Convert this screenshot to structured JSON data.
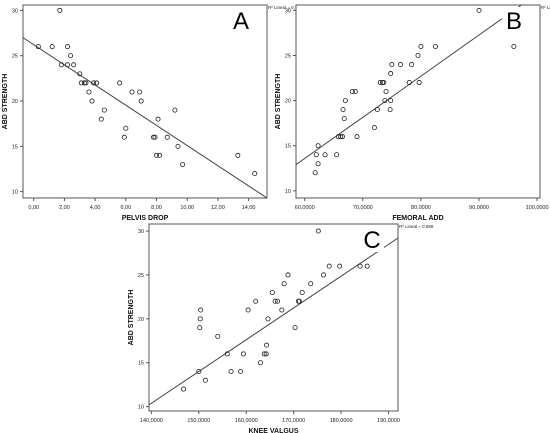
{
  "chart_data": [
    {
      "panel_label": "A",
      "type": "scatter",
      "title": "",
      "xlabel": "PELVIS DROP",
      "ylabel": "ABD STRENGTH",
      "legend_text": "R² Lineal = 0,762",
      "x_ticks": [
        "0,00",
        "2,00",
        "4,00",
        "6,00",
        "8,00",
        "10,00",
        "12,00",
        "14,00"
      ],
      "x_tick_values": [
        0,
        2,
        4,
        6,
        8,
        10,
        12,
        14
      ],
      "y_ticks": [
        "10",
        "15",
        "20",
        "25",
        "30"
      ],
      "y_tick_values": [
        10,
        15,
        20,
        25,
        30
      ],
      "xlim": [
        -0.7,
        15.2
      ],
      "ylim": [
        9.3,
        30.6
      ],
      "fit_line": {
        "x": [
          -0.7,
          15.2
        ],
        "y": [
          27.0,
          9.3
        ]
      },
      "points": [
        [
          0.3,
          26
        ],
        [
          1.2,
          26
        ],
        [
          1.7,
          30
        ],
        [
          1.8,
          24
        ],
        [
          2.2,
          26
        ],
        [
          2.4,
          25
        ],
        [
          2.2,
          24
        ],
        [
          2.6,
          24
        ],
        [
          3.0,
          23
        ],
        [
          3.1,
          22
        ],
        [
          3.3,
          22
        ],
        [
          3.6,
          21
        ],
        [
          3.4,
          22
        ],
        [
          3.9,
          22
        ],
        [
          3.8,
          20
        ],
        [
          4.1,
          22
        ],
        [
          4.4,
          18
        ],
        [
          4.6,
          19
        ],
        [
          5.6,
          22
        ],
        [
          5.9,
          16
        ],
        [
          6.0,
          17
        ],
        [
          6.4,
          21
        ],
        [
          6.9,
          21
        ],
        [
          7.0,
          20
        ],
        [
          7.8,
          16
        ],
        [
          7.9,
          16
        ],
        [
          8.1,
          18
        ],
        [
          8.0,
          14
        ],
        [
          8.2,
          14
        ],
        [
          8.7,
          16
        ],
        [
          9.2,
          19
        ],
        [
          9.4,
          15
        ],
        [
          9.7,
          13
        ],
        [
          13.3,
          14
        ],
        [
          14.4,
          12
        ]
      ]
    },
    {
      "panel_label": "B",
      "type": "scatter",
      "title": "",
      "xlabel": "FEMORAL ADD",
      "ylabel": "ABD STRENGTH",
      "legend_text": "R² Lineal = 0,792",
      "x_ticks": [
        "60,0000",
        "70,0000",
        "80,0000",
        "90,0000",
        "100,0000"
      ],
      "x_tick_values": [
        60,
        70,
        80,
        90,
        100
      ],
      "y_ticks": [
        "10",
        "15",
        "20",
        "25",
        "30"
      ],
      "y_tick_values": [
        10,
        15,
        20,
        25,
        30
      ],
      "xlim": [
        58.5,
        100.5
      ],
      "ylim": [
        9.2,
        30.6
      ],
      "fit_line": {
        "x": [
          58.5,
          97.3
        ],
        "y": [
          12.9,
          30.6
        ]
      },
      "points": [
        [
          61.8,
          12
        ],
        [
          62.0,
          14
        ],
        [
          62.3,
          13
        ],
        [
          62.3,
          15
        ],
        [
          63.5,
          14
        ],
        [
          65.5,
          14
        ],
        [
          65.8,
          16
        ],
        [
          66.2,
          16
        ],
        [
          66.5,
          16
        ],
        [
          66.6,
          19
        ],
        [
          66.8,
          18
        ],
        [
          67.0,
          20
        ],
        [
          68.2,
          21
        ],
        [
          68.7,
          21
        ],
        [
          69.0,
          16
        ],
        [
          72.0,
          17
        ],
        [
          72.5,
          19
        ],
        [
          73.0,
          22
        ],
        [
          73.4,
          22
        ],
        [
          73.6,
          22
        ],
        [
          73.8,
          20
        ],
        [
          74.0,
          21
        ],
        [
          74.7,
          19
        ],
        [
          74.8,
          20
        ],
        [
          74.8,
          23
        ],
        [
          75.0,
          24
        ],
        [
          76.5,
          24
        ],
        [
          78.0,
          22
        ],
        [
          78.4,
          24
        ],
        [
          79.5,
          25
        ],
        [
          79.7,
          22
        ],
        [
          80.0,
          26
        ],
        [
          82.5,
          26
        ],
        [
          90.0,
          30
        ],
        [
          96.0,
          26
        ]
      ]
    },
    {
      "panel_label": "C",
      "type": "scatter",
      "title": "",
      "xlabel": "KNEE VALGUS",
      "ylabel": "ABD STRENGTH",
      "legend_text": "R² Lineal = 0,588",
      "x_ticks": [
        "140,0000",
        "150,0000",
        "160,0000",
        "170,0000",
        "180,0000",
        "190,0000"
      ],
      "x_tick_values": [
        140,
        150,
        160,
        170,
        180,
        190
      ],
      "y_ticks": [
        "10",
        "15",
        "20",
        "25",
        "30"
      ],
      "y_tick_values": [
        10,
        15,
        20,
        25,
        30
      ],
      "xlim": [
        139.5,
        192.0
      ],
      "ylim": [
        9.5,
        30.8
      ],
      "fit_line": {
        "x": [
          139.5,
          192.0
        ],
        "y": [
          10.2,
          29.2
        ]
      },
      "points": [
        [
          146.8,
          12
        ],
        [
          150.0,
          14
        ],
        [
          150.2,
          19
        ],
        [
          150.3,
          20
        ],
        [
          150.4,
          21
        ],
        [
          151.4,
          13
        ],
        [
          154.0,
          18
        ],
        [
          156.0,
          16
        ],
        [
          156.8,
          14
        ],
        [
          158.8,
          14
        ],
        [
          159.4,
          16
        ],
        [
          160.4,
          21
        ],
        [
          162.0,
          22
        ],
        [
          163.0,
          15
        ],
        [
          163.8,
          16
        ],
        [
          164.2,
          16
        ],
        [
          164.3,
          17
        ],
        [
          164.6,
          20
        ],
        [
          165.5,
          23
        ],
        [
          166.1,
          22
        ],
        [
          166.6,
          22
        ],
        [
          167.5,
          21
        ],
        [
          168.0,
          24
        ],
        [
          168.8,
          25
        ],
        [
          170.3,
          19
        ],
        [
          171.0,
          22
        ],
        [
          171.2,
          22
        ],
        [
          171.8,
          23
        ],
        [
          173.6,
          24
        ],
        [
          175.2,
          30
        ],
        [
          176.3,
          25
        ],
        [
          177.5,
          26
        ],
        [
          179.7,
          26
        ],
        [
          184.0,
          26
        ],
        [
          185.5,
          26
        ]
      ]
    }
  ]
}
